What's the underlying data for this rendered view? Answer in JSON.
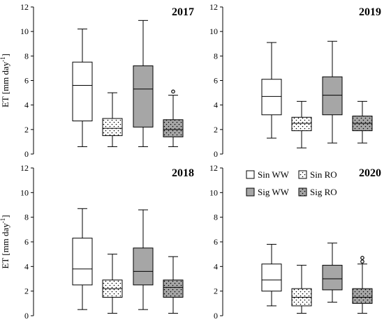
{
  "chart_data": [
    {
      "type": "boxplot",
      "title": "2017",
      "ylabel": "ET [mm day",
      "ylabel_sup": "-1",
      "ylabel_suffix": "]",
      "ylim": [
        0,
        12
      ],
      "yticks": [
        "0",
        "2",
        "4",
        "6",
        "8",
        "10",
        "12"
      ],
      "series": [
        {
          "name": "Sin WW",
          "fill": "#ffffff",
          "pattern": "none",
          "min": 0.6,
          "q1": 2.7,
          "median": 5.6,
          "q3": 7.5,
          "max": 10.2,
          "outliers": []
        },
        {
          "name": "Sin RO",
          "fill": "#ffffff",
          "pattern": "dots",
          "min": 0.6,
          "q1": 1.5,
          "median": 2.1,
          "q3": 2.9,
          "max": 5.0,
          "outliers": []
        },
        {
          "name": "Sig WW",
          "fill": "#a6a6a6",
          "pattern": "none",
          "min": 0.6,
          "q1": 2.2,
          "median": 5.3,
          "q3": 7.2,
          "max": 10.9,
          "outliers": []
        },
        {
          "name": "Sig RO",
          "fill": "#a6a6a6",
          "pattern": "dots",
          "min": 0.6,
          "q1": 1.4,
          "median": 2.0,
          "q3": 2.8,
          "max": 4.8,
          "outliers": [
            5.1
          ]
        }
      ]
    },
    {
      "type": "boxplot",
      "title": "2019",
      "ylabel": "",
      "ylim": [
        0,
        12
      ],
      "yticks": [
        "0",
        "2",
        "4",
        "6",
        "8",
        "10",
        "12"
      ],
      "series": [
        {
          "name": "Sin WW",
          "fill": "#ffffff",
          "pattern": "none",
          "min": 1.3,
          "q1": 3.2,
          "median": 4.7,
          "q3": 6.1,
          "max": 9.1,
          "outliers": []
        },
        {
          "name": "Sin RO",
          "fill": "#ffffff",
          "pattern": "dots",
          "min": 0.5,
          "q1": 1.9,
          "median": 2.5,
          "q3": 3.0,
          "max": 4.3,
          "outliers": []
        },
        {
          "name": "Sig WW",
          "fill": "#a6a6a6",
          "pattern": "none",
          "min": 0.9,
          "q1": 3.2,
          "median": 4.8,
          "q3": 6.3,
          "max": 9.2,
          "outliers": []
        },
        {
          "name": "Sig RO",
          "fill": "#a6a6a6",
          "pattern": "dots",
          "min": 0.9,
          "q1": 1.9,
          "median": 2.5,
          "q3": 3.1,
          "max": 4.3,
          "outliers": []
        }
      ]
    },
    {
      "type": "boxplot",
      "title": "2018",
      "ylabel": "ET [mm day",
      "ylabel_sup": "-1",
      "ylabel_suffix": "]",
      "ylim": [
        0,
        12
      ],
      "yticks": [
        "0",
        "2",
        "4",
        "6",
        "8",
        "10",
        "12"
      ],
      "series": [
        {
          "name": "Sin WW",
          "fill": "#ffffff",
          "pattern": "none",
          "min": 0.5,
          "q1": 2.5,
          "median": 3.8,
          "q3": 6.3,
          "max": 8.7,
          "outliers": []
        },
        {
          "name": "Sin RO",
          "fill": "#ffffff",
          "pattern": "dots",
          "min": 0.2,
          "q1": 1.5,
          "median": 2.2,
          "q3": 2.9,
          "max": 5.0,
          "outliers": []
        },
        {
          "name": "Sig WW",
          "fill": "#a6a6a6",
          "pattern": "none",
          "min": 0.5,
          "q1": 2.5,
          "median": 3.6,
          "q3": 5.5,
          "max": 8.6,
          "outliers": []
        },
        {
          "name": "Sig RO",
          "fill": "#a6a6a6",
          "pattern": "dots",
          "min": 0.2,
          "q1": 1.5,
          "median": 2.3,
          "q3": 2.9,
          "max": 4.8,
          "outliers": []
        }
      ]
    },
    {
      "type": "boxplot",
      "title": "2020",
      "ylabel": "",
      "ylim": [
        0,
        12
      ],
      "yticks": [
        "0",
        "2",
        "4",
        "6",
        "8",
        "10",
        "12"
      ],
      "series": [
        {
          "name": "Sin WW",
          "fill": "#ffffff",
          "pattern": "none",
          "min": 0.8,
          "q1": 2.0,
          "median": 2.9,
          "q3": 4.2,
          "max": 5.8,
          "outliers": []
        },
        {
          "name": "Sin RO",
          "fill": "#ffffff",
          "pattern": "dots",
          "min": 0.2,
          "q1": 0.8,
          "median": 1.5,
          "q3": 2.2,
          "max": 4.1,
          "outliers": []
        },
        {
          "name": "Sig WW",
          "fill": "#a6a6a6",
          "pattern": "none",
          "min": 1.1,
          "q1": 2.1,
          "median": 3.0,
          "q3": 4.1,
          "max": 5.9,
          "outliers": []
        },
        {
          "name": "Sig RO",
          "fill": "#a6a6a6",
          "pattern": "dots",
          "min": 0.2,
          "q1": 1.0,
          "median": 1.5,
          "q3": 2.2,
          "max": 4.2,
          "outliers": [
            4.7,
            4.4
          ]
        }
      ]
    }
  ],
  "legend": {
    "placement": "top-right of 2020 panel",
    "items": [
      {
        "label": "Sin WW",
        "fill": "#ffffff",
        "pattern": "none"
      },
      {
        "label": "Sin RO",
        "fill": "#ffffff",
        "pattern": "dots"
      },
      {
        "label": "Sig WW",
        "fill": "#a6a6a6",
        "pattern": "none"
      },
      {
        "label": "Sig RO",
        "fill": "#a6a6a6",
        "pattern": "dots"
      }
    ]
  },
  "colors": {
    "gray_fill": "#a6a6a6",
    "white_fill": "#ffffff",
    "stroke": "#000000"
  }
}
